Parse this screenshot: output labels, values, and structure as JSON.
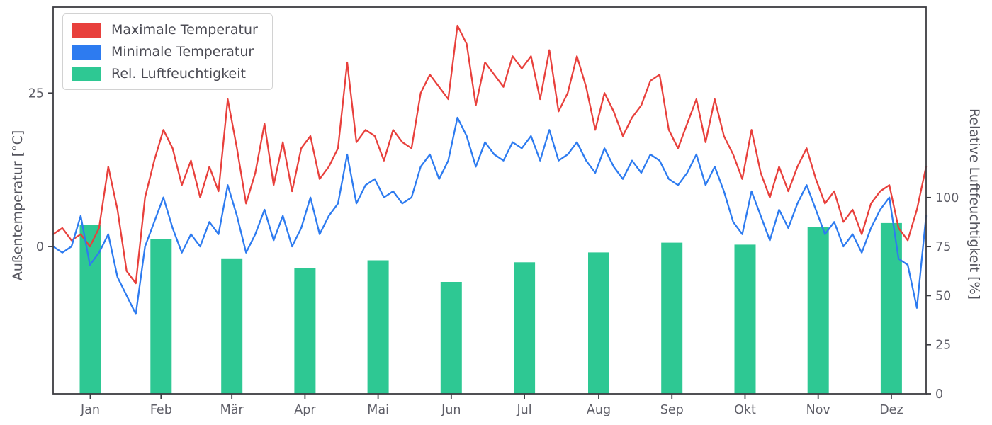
{
  "chart_data": {
    "type": "line+bar",
    "title": "",
    "x_axis": {
      "tick_labels": [
        "Jan",
        "Feb",
        "Mär",
        "Apr",
        "Mai",
        "Jun",
        "Jul",
        "Aug",
        "Sep",
        "Okt",
        "Nov",
        "Dez"
      ],
      "month_lengths": [
        31,
        28,
        31,
        30,
        31,
        30,
        31,
        31,
        30,
        31,
        30,
        31
      ],
      "range_days": [
        1,
        365
      ]
    },
    "left_axis": {
      "label": "Außentemperatur [°C]",
      "unit": "°C",
      "ticks": [
        0,
        25
      ],
      "range": [
        -24,
        39
      ]
    },
    "right_axis": {
      "label": "Relative Luftfeuchtigkeit [%]",
      "unit": "%",
      "ticks": [
        0,
        25,
        50,
        75,
        100
      ],
      "range": [
        0,
        197
      ]
    },
    "legend": {
      "items": [
        {
          "label": "Maximale Temperatur",
          "color": "#e8403c",
          "type": "line"
        },
        {
          "label": "Minimale Temperatur",
          "color": "#2d7bf0",
          "type": "line"
        },
        {
          "label": "Rel. Luftfeuchtigkeit",
          "color": "#2ec893",
          "type": "bar"
        }
      ]
    },
    "series": [
      {
        "name": "Maximale Temperatur",
        "axis": "left",
        "color": "#e8403c",
        "sampling": "approx every 3.8 days, 96 points over the year",
        "values": [
          2,
          3,
          1,
          2,
          0,
          3,
          13,
          6,
          -4,
          -6,
          8,
          14,
          19,
          16,
          10,
          14,
          8,
          13,
          9,
          24,
          16,
          7,
          12,
          20,
          10,
          17,
          9,
          16,
          18,
          11,
          13,
          16,
          30,
          17,
          19,
          18,
          14,
          19,
          17,
          16,
          25,
          28,
          26,
          24,
          36,
          33,
          23,
          30,
          28,
          26,
          31,
          29,
          31,
          24,
          32,
          22,
          25,
          31,
          26,
          19,
          25,
          22,
          18,
          21,
          23,
          27,
          28,
          19,
          16,
          20,
          24,
          17,
          24,
          18,
          15,
          11,
          19,
          12,
          8,
          13,
          9,
          13,
          16,
          11,
          7,
          9,
          4,
          6,
          2,
          7,
          9,
          10,
          3,
          1,
          6,
          13
        ]
      },
      {
        "name": "Minimale Temperatur",
        "axis": "left",
        "color": "#2d7bf0",
        "sampling": "approx every 3.8 days, 96 points over the year",
        "values": [
          0,
          -1,
          0,
          5,
          -3,
          -1,
          2,
          -5,
          -8,
          -11,
          0,
          4,
          8,
          3,
          -1,
          2,
          0,
          4,
          2,
          10,
          5,
          -1,
          2,
          6,
          1,
          5,
          0,
          3,
          8,
          2,
          5,
          7,
          15,
          7,
          10,
          11,
          8,
          9,
          7,
          8,
          13,
          15,
          11,
          14,
          21,
          18,
          13,
          17,
          15,
          14,
          17,
          16,
          18,
          14,
          19,
          14,
          15,
          17,
          14,
          12,
          16,
          13,
          11,
          14,
          12,
          15,
          14,
          11,
          10,
          12,
          15,
          10,
          13,
          9,
          4,
          2,
          9,
          5,
          1,
          6,
          3,
          7,
          10,
          6,
          2,
          4,
          0,
          2,
          -1,
          3,
          6,
          8,
          -2,
          -3,
          -10,
          5
        ]
      }
    ],
    "bars": {
      "name": "Rel. Luftfeuchtigkeit",
      "axis": "right",
      "color": "#2ec893",
      "categories": [
        "Jan",
        "Feb",
        "Mär",
        "Apr",
        "Mai",
        "Jun",
        "Jul",
        "Aug",
        "Sep",
        "Okt",
        "Nov",
        "Dez"
      ],
      "values": [
        86,
        79,
        69,
        64,
        68,
        57,
        67,
        72,
        77,
        76,
        85,
        87
      ]
    },
    "style": {
      "spine_color": "#3c3c42",
      "tick_label_color": "#5f5f68",
      "grid": false,
      "legend_position": "upper-left"
    }
  }
}
